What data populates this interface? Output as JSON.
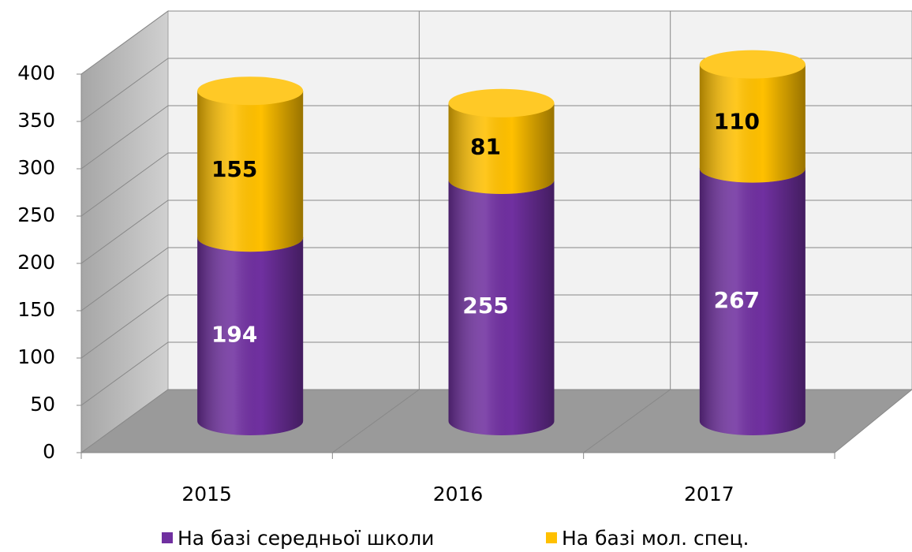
{
  "chart_data": {
    "type": "bar",
    "stacked": true,
    "style": "3d-cylinder",
    "categories": [
      "2015",
      "2016",
      "2017"
    ],
    "series": [
      {
        "name": "На базі середньої школи",
        "color": "#7030a0",
        "label_color": "#ffffff",
        "values": [
          194,
          255,
          267
        ]
      },
      {
        "name": "На базі мол. спец.",
        "color": "#ffc000",
        "label_color": "#000000",
        "values": [
          155,
          81,
          110
        ]
      }
    ],
    "ylim": [
      0,
      400
    ],
    "yticks": [
      0,
      50,
      100,
      150,
      200,
      250,
      300,
      350,
      400
    ],
    "grid": true,
    "legend": "bottom"
  }
}
